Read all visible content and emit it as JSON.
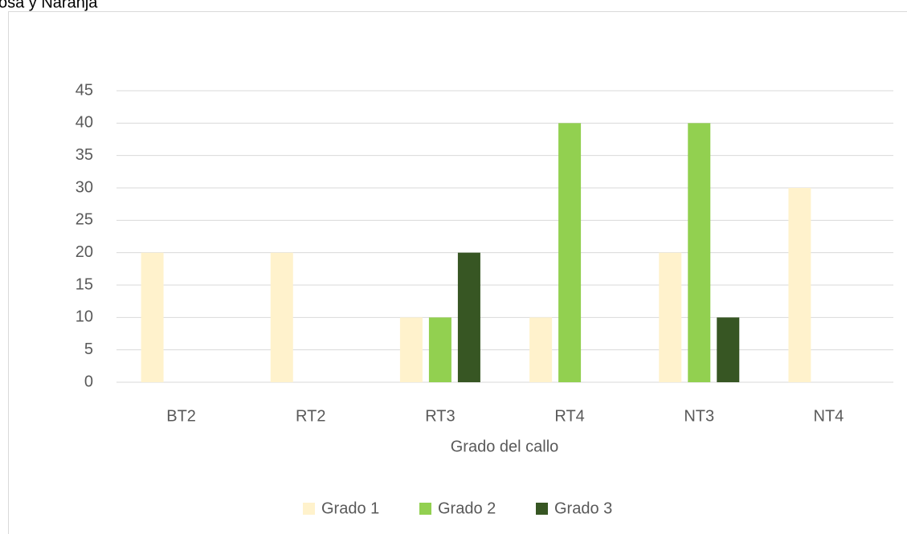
{
  "chart_data": {
    "type": "bar",
    "title": "osa y Naranja",
    "x_label": "Grado del callo",
    "categories": [
      "BT2",
      "RT2",
      "RT3",
      "RT4",
      "NT3",
      "NT4"
    ],
    "series": [
      {
        "name": "Grado 1",
        "color": "#fff2cc",
        "values": [
          20,
          20,
          10,
          10,
          20,
          30
        ]
      },
      {
        "name": "Grado 2",
        "color": "#92d050",
        "values": [
          0,
          0,
          10,
          40,
          40,
          0
        ]
      },
      {
        "name": "Grado 3",
        "color": "#375623",
        "values": [
          0,
          0,
          20,
          0,
          10,
          0
        ]
      }
    ],
    "ylim": [
      0,
      45
    ],
    "yticks": [
      0,
      5,
      10,
      15,
      20,
      25,
      30,
      35,
      40,
      45
    ],
    "grid": true,
    "legend": "bottom"
  }
}
